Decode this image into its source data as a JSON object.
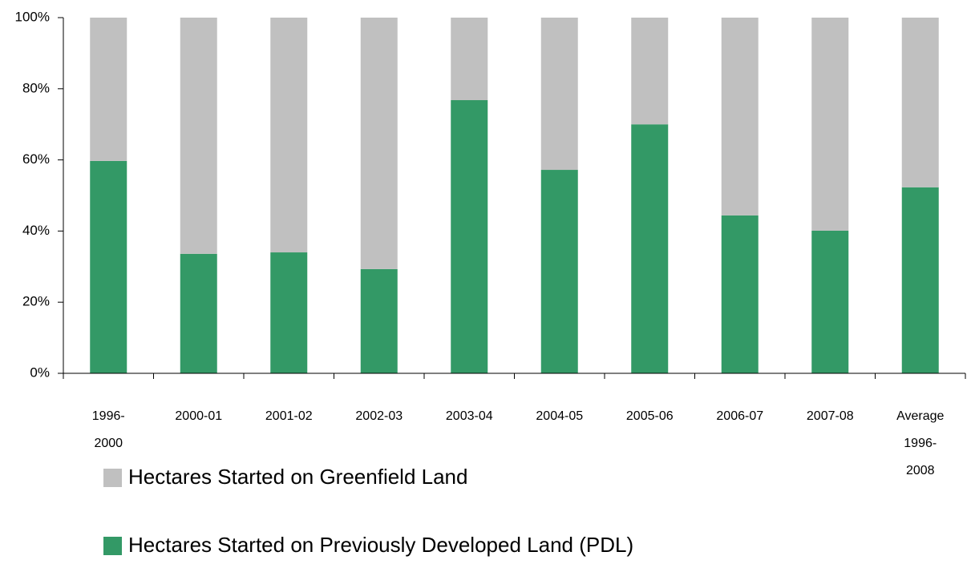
{
  "chart_data": {
    "type": "stacked_bar",
    "categories": [
      "1996-2000",
      "2000-01",
      "2001-02",
      "2002-03",
      "2003-04",
      "2004-05",
      "2005-06",
      "2006-07",
      "2007-08",
      "Average 1996-2008"
    ],
    "series": [
      {
        "name": "Hectares Started on Previously Developed Land (PDL)",
        "color": "#339966",
        "values": [
          59.7,
          33.6,
          34.0,
          29.3,
          76.8,
          57.2,
          70.0,
          44.4,
          40.1,
          52.3
        ]
      },
      {
        "name": "Hectares Started on Greenfield Land",
        "color": "#c0c0c0",
        "values": [
          40.3,
          66.4,
          66.0,
          70.7,
          23.2,
          42.8,
          30.0,
          55.6,
          59.9,
          47.7
        ]
      }
    ],
    "legend_order": [
      1,
      0
    ],
    "ylim": [
      0,
      100
    ],
    "yticks": [
      {
        "value": 0,
        "label": "0%"
      },
      {
        "value": 20,
        "label": "20%"
      },
      {
        "value": 40,
        "label": "40%"
      },
      {
        "value": 60,
        "label": "60%"
      },
      {
        "value": 80,
        "label": "80%"
      },
      {
        "value": 100,
        "label": "100%"
      }
    ],
    "grid": false
  }
}
